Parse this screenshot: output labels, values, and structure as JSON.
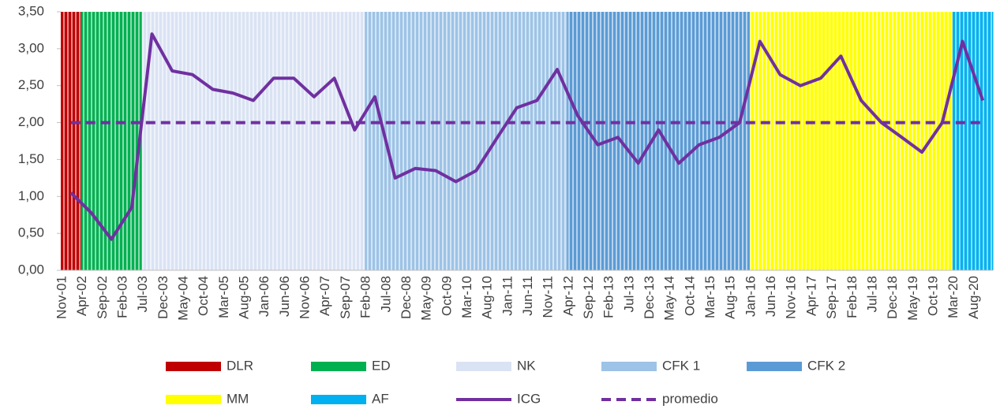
{
  "chart_data": {
    "type": "combo",
    "categories": [
      "Nov-01",
      "Apr-02",
      "Sep-02",
      "Feb-03",
      "Jul-03",
      "Dec-03",
      "May-04",
      "Oct-04",
      "Mar-05",
      "Aug-05",
      "Jan-06",
      "Jun-06",
      "Nov-06",
      "Apr-07",
      "Sep-07",
      "Feb-08",
      "Jul-08",
      "Dec-08",
      "May-09",
      "Oct-09",
      "Mar-10",
      "Aug-10",
      "Jan-11",
      "Jun-11",
      "Nov-11",
      "Apr-12",
      "Sep-12",
      "Feb-13",
      "Jul-13",
      "Dec-13",
      "May-14",
      "Oct-14",
      "Mar-15",
      "Aug-15",
      "Jan-16",
      "Jun-16",
      "Nov-16",
      "Apr-17",
      "Sep-17",
      "Feb-18",
      "Jul-18",
      "Dec-18",
      "May-19",
      "Oct-19",
      "Mar-20",
      "Aug-20"
    ],
    "ylim": [
      0,
      3.5
    ],
    "yticks": [
      {
        "value": 0,
        "label": "0,00"
      },
      {
        "value": 0.5,
        "label": "0,50"
      },
      {
        "value": 1,
        "label": "1,00"
      },
      {
        "value": 1.5,
        "label": "1,50"
      },
      {
        "value": 2,
        "label": "2,00"
      },
      {
        "value": 2.5,
        "label": "2,50"
      },
      {
        "value": 3,
        "label": "3,00"
      },
      {
        "value": 3.5,
        "label": "3,50"
      }
    ],
    "series": [
      {
        "name": "DLR",
        "kind": "bar",
        "color": "#c00000",
        "values": [
          3.5,
          null,
          null,
          null,
          null,
          null,
          null,
          null,
          null,
          null,
          null,
          null,
          null,
          null,
          null,
          null,
          null,
          null,
          null,
          null,
          null,
          null,
          null,
          null,
          null,
          null,
          null,
          null,
          null,
          null,
          null,
          null,
          null,
          null,
          null,
          null,
          null,
          null,
          null,
          null,
          null,
          null,
          null,
          null,
          null,
          null
        ]
      },
      {
        "name": "ED",
        "kind": "bar",
        "color": "#00b050",
        "values": [
          null,
          3.5,
          3.5,
          3.5,
          null,
          null,
          null,
          null,
          null,
          null,
          null,
          null,
          null,
          null,
          null,
          null,
          null,
          null,
          null,
          null,
          null,
          null,
          null,
          null,
          null,
          null,
          null,
          null,
          null,
          null,
          null,
          null,
          null,
          null,
          null,
          null,
          null,
          null,
          null,
          null,
          null,
          null,
          null,
          null,
          null,
          null
        ]
      },
      {
        "name": "NK",
        "kind": "bar",
        "color": "#dae3f3",
        "values": [
          null,
          null,
          null,
          null,
          3.5,
          3.5,
          3.5,
          3.5,
          3.5,
          3.5,
          3.5,
          3.5,
          3.5,
          3.5,
          3.5,
          null,
          null,
          null,
          null,
          null,
          null,
          null,
          null,
          null,
          null,
          null,
          null,
          null,
          null,
          null,
          null,
          null,
          null,
          null,
          null,
          null,
          null,
          null,
          null,
          null,
          null,
          null,
          null,
          null,
          null,
          null
        ]
      },
      {
        "name": "CFK 1",
        "kind": "bar",
        "color": "#9dc3e6",
        "values": [
          null,
          null,
          null,
          null,
          null,
          null,
          null,
          null,
          null,
          null,
          null,
          null,
          null,
          null,
          null,
          3.5,
          3.5,
          3.5,
          3.5,
          3.5,
          3.5,
          3.5,
          3.5,
          3.5,
          3.5,
          null,
          null,
          null,
          null,
          null,
          null,
          null,
          null,
          null,
          null,
          null,
          null,
          null,
          null,
          null,
          null,
          null,
          null,
          null,
          null,
          null
        ]
      },
      {
        "name": "CFK 2",
        "kind": "bar",
        "color": "#5b9bd5",
        "values": [
          null,
          null,
          null,
          null,
          null,
          null,
          null,
          null,
          null,
          null,
          null,
          null,
          null,
          null,
          null,
          null,
          null,
          null,
          null,
          null,
          null,
          null,
          null,
          null,
          null,
          3.5,
          3.5,
          3.5,
          3.5,
          3.5,
          3.5,
          3.5,
          3.5,
          3.5,
          null,
          null,
          null,
          null,
          null,
          null,
          null,
          null,
          null,
          null,
          null,
          null
        ]
      },
      {
        "name": "MM",
        "kind": "bar",
        "color": "#ffff00",
        "values": [
          null,
          null,
          null,
          null,
          null,
          null,
          null,
          null,
          null,
          null,
          null,
          null,
          null,
          null,
          null,
          null,
          null,
          null,
          null,
          null,
          null,
          null,
          null,
          null,
          null,
          null,
          null,
          null,
          null,
          null,
          null,
          null,
          null,
          null,
          3.5,
          3.5,
          3.5,
          3.5,
          3.5,
          3.5,
          3.5,
          3.5,
          3.5,
          3.5,
          null,
          null
        ]
      },
      {
        "name": "AF",
        "kind": "bar",
        "color": "#00b0f0",
        "values": [
          null,
          null,
          null,
          null,
          null,
          null,
          null,
          null,
          null,
          null,
          null,
          null,
          null,
          null,
          null,
          null,
          null,
          null,
          null,
          null,
          null,
          null,
          null,
          null,
          null,
          null,
          null,
          null,
          null,
          null,
          null,
          null,
          null,
          null,
          null,
          null,
          null,
          null,
          null,
          null,
          null,
          null,
          null,
          null,
          3.5,
          3.5
        ]
      },
      {
        "name": "ICG",
        "kind": "line",
        "color": "#7030a0",
        "values": [
          1.05,
          0.78,
          0.42,
          0.85,
          3.2,
          2.7,
          2.65,
          2.45,
          2.4,
          2.3,
          2.6,
          2.6,
          2.35,
          2.6,
          1.9,
          2.35,
          1.25,
          1.38,
          1.35,
          1.2,
          1.35,
          1.78,
          2.2,
          2.3,
          2.72,
          2.1,
          1.7,
          1.8,
          1.45,
          1.9,
          1.45,
          1.7,
          1.8,
          2.0,
          3.1,
          2.65,
          2.5,
          2.6,
          2.9,
          2.3,
          2.0,
          1.8,
          1.6,
          2.0,
          3.1,
          2.3
        ]
      },
      {
        "name": "promedio",
        "kind": "line",
        "dashed": true,
        "color": "#7030a0",
        "values": [
          2,
          2,
          2,
          2,
          2,
          2,
          2,
          2,
          2,
          2,
          2,
          2,
          2,
          2,
          2,
          2,
          2,
          2,
          2,
          2,
          2,
          2,
          2,
          2,
          2,
          2,
          2,
          2,
          2,
          2,
          2,
          2,
          2,
          2,
          2,
          2,
          2,
          2,
          2,
          2,
          2,
          2,
          2,
          2,
          2,
          2
        ]
      }
    ]
  }
}
